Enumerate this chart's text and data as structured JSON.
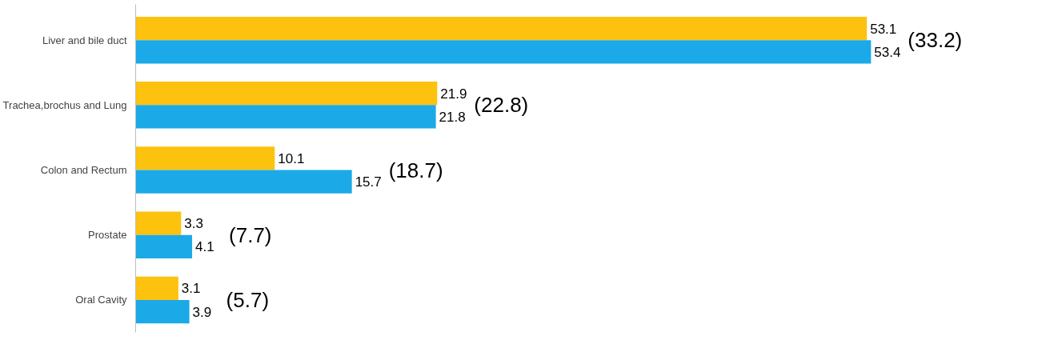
{
  "chart_data": {
    "type": "bar",
    "orientation": "horizontal",
    "categories": [
      "Liver and bile duct",
      "Trachea,brochus and Lung",
      "Colon and Rectum",
      "Prostate",
      "Oral Cavity"
    ],
    "series": [
      {
        "color": "#fcc20e",
        "values": [
          53.1,
          21.9,
          10.1,
          3.3,
          3.1
        ]
      },
      {
        "color": "#1ba9e8",
        "values": [
          53.4,
          21.8,
          15.7,
          4.1,
          3.9
        ]
      }
    ],
    "data_labels": true,
    "grid": false,
    "annotations": [
      {
        "text": "(33.2)",
        "x": 53.4,
        "y": "Liver and bile duct"
      },
      {
        "text": "(22.8)",
        "x": 21.9,
        "y": "Trachea,brochus and Lung"
      },
      {
        "text": "(18.7)",
        "x": 15.7,
        "y": "Colon and Rectum"
      },
      {
        "text": "(7.7)",
        "x": 4.1,
        "y": "Prostate"
      },
      {
        "text": "(5.7)",
        "x": 3.9,
        "y": "Oral Cavity"
      }
    ]
  }
}
